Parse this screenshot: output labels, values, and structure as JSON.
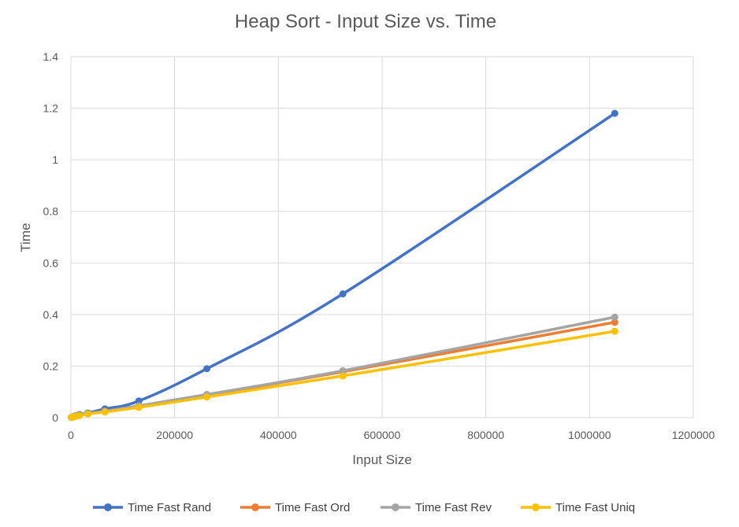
{
  "chart_data": {
    "type": "scatter",
    "title": "Heap Sort - Input Size vs. Time",
    "xlabel": "Input Size",
    "ylabel": "Time",
    "xlim": [
      0,
      1200000
    ],
    "ylim": [
      0,
      1.4
    ],
    "x_ticks": [
      0,
      200000,
      400000,
      600000,
      800000,
      1000000,
      1200000
    ],
    "y_ticks": [
      0,
      0.2,
      0.4,
      0.6,
      0.8,
      1,
      1.2,
      1.4
    ],
    "x_tick_labels": [
      "0",
      "200000",
      "400000",
      "600000",
      "800000",
      "1000000",
      "1200000"
    ],
    "y_tick_labels": [
      "0",
      "0.2",
      "0.4",
      "0.6",
      "0.8",
      "1",
      "1.2",
      "1.4"
    ],
    "grid": true,
    "legend_position": "bottom",
    "x": [
      1024,
      2048,
      4096,
      8192,
      16384,
      32768,
      65536,
      131072,
      262144,
      524288,
      1048576
    ],
    "series": [
      {
        "name": "Time Fast Rand",
        "color": "#4472c4",
        "values": [
          0.001,
          0.002,
          0.004,
          0.007,
          0.012,
          0.018,
          0.034,
          0.065,
          0.19,
          0.48,
          1.18
        ]
      },
      {
        "name": "Time Fast Ord",
        "color": "#ed7d31",
        "values": [
          0.001,
          0.002,
          0.003,
          0.005,
          0.009,
          0.015,
          0.025,
          0.045,
          0.088,
          0.178,
          0.37
        ]
      },
      {
        "name": "Time Fast Rev",
        "color": "#a5a5a5",
        "values": [
          0.001,
          0.002,
          0.003,
          0.005,
          0.009,
          0.015,
          0.025,
          0.046,
          0.09,
          0.182,
          0.39
        ]
      },
      {
        "name": "Time Fast Uniq",
        "color": "#ffc000",
        "values": [
          0.001,
          0.002,
          0.003,
          0.005,
          0.008,
          0.015,
          0.022,
          0.04,
          0.08,
          0.162,
          0.335
        ]
      }
    ]
  }
}
